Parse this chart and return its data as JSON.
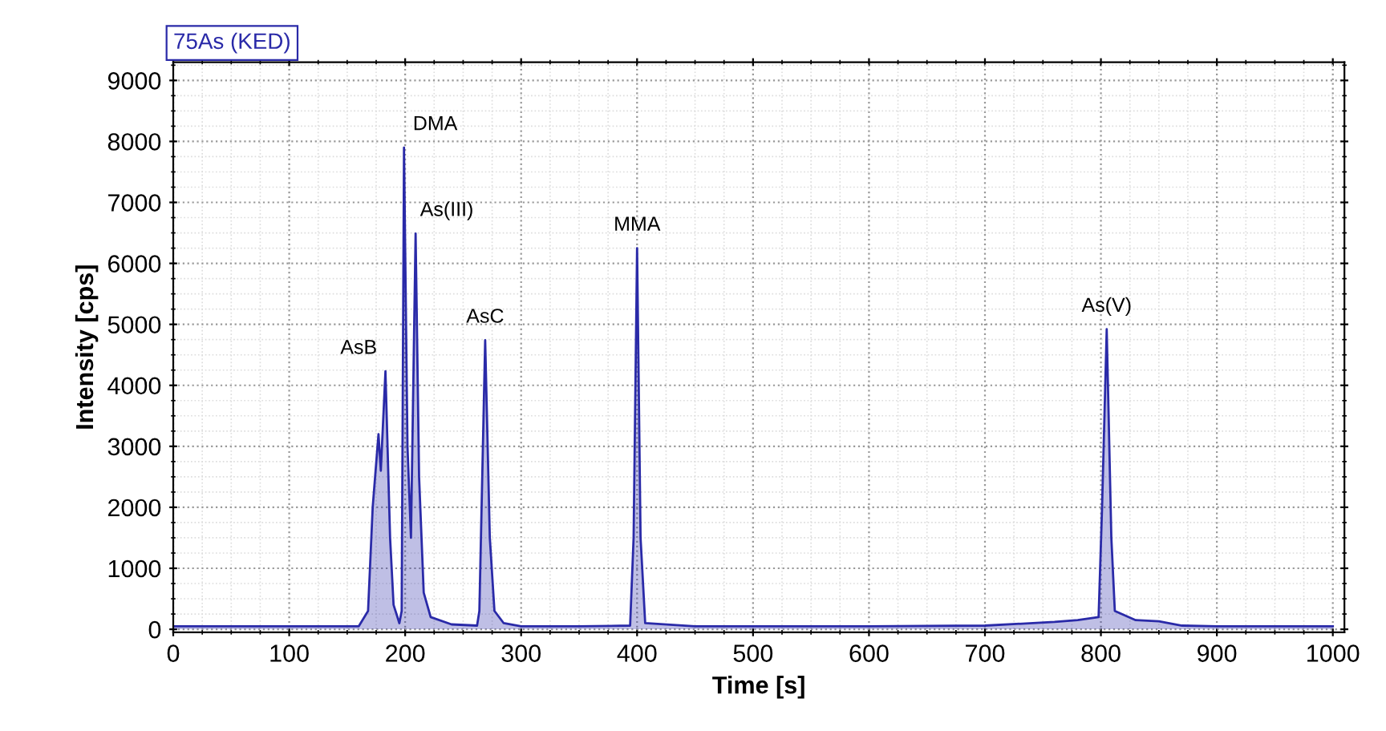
{
  "chart_data": {
    "type": "area",
    "title": "75As (KED)",
    "xlabel": "Time [s]",
    "ylabel": "Intensity [cps]",
    "xlim": [
      0,
      1010
    ],
    "ylim": [
      -50,
      9300
    ],
    "xticks": [
      0,
      100,
      200,
      300,
      400,
      500,
      600,
      700,
      800,
      900,
      1000
    ],
    "yticks": [
      0,
      1000,
      2000,
      3000,
      4000,
      5000,
      6000,
      7000,
      8000,
      9000
    ],
    "grid": true,
    "line_style": "solid",
    "marker": "none",
    "series": [
      {
        "color": "#2a2aa8",
        "x": [
          0,
          50,
          100,
          150,
          160,
          168,
          172,
          177,
          179,
          183,
          187,
          190,
          195,
          197,
          199,
          202,
          205,
          209,
          212,
          216,
          222,
          240,
          262,
          264,
          269,
          273,
          277,
          285,
          300,
          350,
          394,
          397,
          400,
          403,
          407,
          450,
          500,
          600,
          700,
          760,
          780,
          798,
          801,
          805,
          809,
          812,
          830,
          850,
          870,
          900,
          1000
        ],
        "values": [
          50,
          50,
          50,
          50,
          50,
          300,
          2000,
          3200,
          2600,
          4230,
          1500,
          400,
          100,
          300,
          7900,
          3000,
          1500,
          6490,
          2500,
          600,
          200,
          80,
          60,
          300,
          4740,
          1500,
          300,
          100,
          50,
          50,
          60,
          1500,
          6250,
          1500,
          100,
          50,
          50,
          50,
          60,
          120,
          150,
          200,
          2000,
          4920,
          1500,
          300,
          150,
          130,
          60,
          50,
          50
        ]
      }
    ],
    "annotations": [
      {
        "text": "AsB",
        "x": 183,
        "y": 4230
      },
      {
        "text": "DMA",
        "x": 199,
        "y": 7900
      },
      {
        "text": "As(III)",
        "x": 209,
        "y": 6490
      },
      {
        "text": "AsC",
        "x": 269,
        "y": 4740
      },
      {
        "text": "MMA",
        "x": 400,
        "y": 6250
      },
      {
        "text": "As(V)",
        "x": 805,
        "y": 4920
      }
    ]
  }
}
